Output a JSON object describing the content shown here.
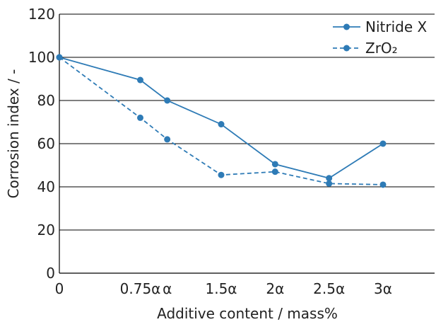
{
  "chart_data": {
    "type": "line",
    "title": "",
    "xlabel": "Additive content / mass%",
    "ylabel": "Corrosion index / -",
    "ylim": [
      0,
      120
    ],
    "y_ticks": [
      "0",
      "20",
      "40",
      "60",
      "80",
      "100",
      "120"
    ],
    "x_values": [
      0,
      0.75,
      1.0,
      1.5,
      2.0,
      2.5,
      3.0
    ],
    "x_ticks": [
      {
        "x": 0,
        "label": "0"
      },
      {
        "x": 0.75,
        "label": "0.75α"
      },
      {
        "x": 1.0,
        "label": "α"
      },
      {
        "x": 1.5,
        "label": "1.5α"
      },
      {
        "x": 2.0,
        "label": "2α"
      },
      {
        "x": 2.5,
        "label": "2.5α"
      },
      {
        "x": 3.0,
        "label": "3α"
      }
    ],
    "grid": true,
    "legend_position": "top-right",
    "series": [
      {
        "name": "Nitride X",
        "style": "solid",
        "color": "#2e7bb6",
        "values": [
          100,
          89.5,
          80,
          69,
          50.5,
          44,
          60
        ]
      },
      {
        "name": "ZrO₂",
        "style": "dashed",
        "color": "#2e7bb6",
        "values": [
          100,
          72,
          62,
          45.5,
          47,
          41.5,
          41
        ]
      }
    ]
  }
}
